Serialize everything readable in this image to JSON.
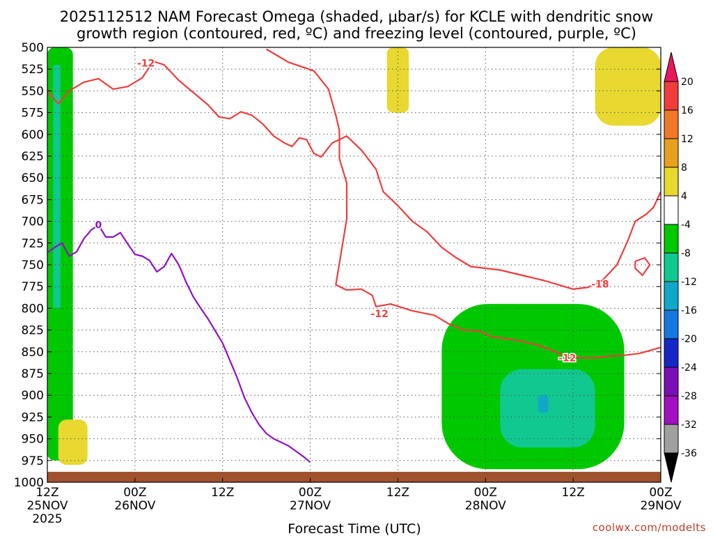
{
  "chart_data": {
    "type": "contour",
    "title_line1": "2025112512 NAM Forecast Omega (shaded, μbar/s) for KCLE with dendritic snow",
    "title_line2": "growth region (contoured, red, ºC) and freezing level (contoured, purple, ºC)",
    "xlabel": "Forecast Time (UTC)",
    "credit": "coolwx.com/modelts",
    "y_axis": {
      "reversed": true,
      "ylim": [
        1000,
        500
      ],
      "ticks": [
        500,
        525,
        550,
        575,
        600,
        625,
        650,
        675,
        700,
        725,
        750,
        775,
        800,
        825,
        850,
        875,
        900,
        925,
        950,
        975,
        1000
      ]
    },
    "x_axis": {
      "xlim": [
        0,
        84
      ],
      "ticks": [
        {
          "hour": 0,
          "time": "12Z",
          "date": "25NOV",
          "year": "2025"
        },
        {
          "hour": 12,
          "time": "00Z",
          "date": "26NOV",
          "year": ""
        },
        {
          "hour": 24,
          "time": "12Z",
          "date": "",
          "year": ""
        },
        {
          "hour": 36,
          "time": "00Z",
          "date": "27NOV",
          "year": ""
        },
        {
          "hour": 48,
          "time": "12Z",
          "date": "",
          "year": ""
        },
        {
          "hour": 60,
          "time": "00Z",
          "date": "28NOV",
          "year": ""
        },
        {
          "hour": 72,
          "time": "12Z",
          "date": "",
          "year": ""
        },
        {
          "hour": 84,
          "time": "00Z",
          "date": "29NOV",
          "year": ""
        }
      ]
    },
    "colorbar": {
      "levels": [
        20,
        16,
        12,
        8,
        4,
        -4,
        -8,
        -12,
        -16,
        -20,
        -24,
        -28,
        -32,
        -36
      ],
      "colors": [
        "#e8185c",
        "#f03c3c",
        "#f07828",
        "#e8a020",
        "#e8d830",
        "#ffffff",
        "#00c800",
        "#10c890",
        "#10a8c8",
        "#1478e0",
        "#1428c8",
        "#7810b4",
        "#a010c0",
        "#a0a0a0",
        "#000000"
      ]
    },
    "contour_labels": [
      {
        "value": "-12",
        "color": "#f03c3c",
        "hour": 13.5,
        "p": 518
      },
      {
        "value": "-12",
        "color": "#f03c3c",
        "hour": 45.5,
        "p": 806
      },
      {
        "value": "-12",
        "color": "#f03c3c",
        "hour": 71.2,
        "p": 857
      },
      {
        "value": "-18",
        "color": "#f03c3c",
        "hour": 75.7,
        "p": 772
      },
      {
        "value": "0",
        "color": "#9010c8",
        "hour": 7.0,
        "p": 704
      }
    ],
    "contours": {
      "dgz_minus12_upper": [
        [
          0,
          550
        ],
        [
          1.5,
          565
        ],
        [
          3,
          550
        ],
        [
          5,
          540
        ],
        [
          7,
          536
        ],
        [
          9,
          548
        ],
        [
          11,
          545
        ],
        [
          13,
          535
        ],
        [
          14.5,
          516
        ],
        [
          16,
          520
        ],
        [
          18,
          538
        ],
        [
          20,
          552
        ],
        [
          22,
          566
        ],
        [
          23.5,
          580
        ],
        [
          25,
          582
        ],
        [
          26.5,
          574
        ],
        [
          28,
          578
        ],
        [
          29.5,
          588
        ],
        [
          31,
          602
        ],
        [
          32.5,
          610
        ],
        [
          33.5,
          614
        ],
        [
          34.5,
          604
        ],
        [
          35.5,
          606
        ],
        [
          36.5,
          622
        ],
        [
          37.5,
          626
        ],
        [
          39,
          610
        ],
        [
          41,
          602
        ],
        [
          43,
          618
        ],
        [
          45,
          640
        ],
        [
          46,
          666
        ],
        [
          48,
          682
        ],
        [
          50,
          700
        ],
        [
          52,
          712
        ],
        [
          54,
          730
        ],
        [
          56,
          742
        ],
        [
          58,
          752
        ],
        [
          60,
          754
        ],
        [
          62,
          756
        ],
        [
          64,
          760
        ],
        [
          66,
          764
        ],
        [
          68,
          768
        ],
        [
          70,
          773
        ],
        [
          72,
          778
        ],
        [
          74,
          776
        ],
        [
          76,
          768
        ],
        [
          78,
          750
        ],
        [
          79.5,
          722
        ],
        [
          80.5,
          700
        ],
        [
          82,
          692
        ],
        [
          83,
          684
        ],
        [
          84,
          666
        ]
      ],
      "dgz_minus18_upper": [
        [
          30,
          502
        ],
        [
          33,
          517
        ],
        [
          36.5,
          527
        ],
        [
          38.5,
          548
        ],
        [
          39.5,
          578
        ],
        [
          40,
          596
        ],
        [
          40,
          628
        ],
        [
          41,
          656
        ],
        [
          41,
          697
        ],
        [
          40,
          748
        ],
        [
          39.5,
          773
        ],
        [
          41,
          779
        ],
        [
          43,
          778
        ],
        [
          44.5,
          785
        ],
        [
          45,
          798
        ],
        [
          47,
          795
        ],
        [
          50,
          803
        ],
        [
          53,
          808
        ],
        [
          55,
          818
        ],
        [
          57,
          825
        ],
        [
          59,
          826
        ],
        [
          61,
          833
        ],
        [
          63,
          835
        ],
        [
          65,
          838
        ],
        [
          67,
          842
        ],
        [
          69,
          848
        ],
        [
          71,
          855
        ],
        [
          73,
          857
        ],
        [
          75,
          857
        ],
        [
          77,
          855
        ],
        [
          79,
          854
        ],
        [
          81,
          852
        ],
        [
          84,
          845
        ]
      ],
      "dgz_minus18_closed": [
        [
          80.5,
          746
        ],
        [
          81.8,
          742
        ],
        [
          82.5,
          750
        ],
        [
          81.5,
          762
        ],
        [
          80.5,
          754
        ],
        [
          80.5,
          746
        ]
      ],
      "freezing_level": [
        [
          0,
          736
        ],
        [
          1,
          730
        ],
        [
          2,
          725
        ],
        [
          3,
          740
        ],
        [
          4,
          735
        ],
        [
          5,
          720
        ],
        [
          6,
          710
        ],
        [
          7,
          704
        ],
        [
          8,
          718
        ],
        [
          9,
          718
        ],
        [
          10,
          713
        ],
        [
          11,
          726
        ],
        [
          12,
          738
        ],
        [
          13,
          740
        ],
        [
          14,
          745
        ],
        [
          15,
          758
        ],
        [
          16,
          752
        ],
        [
          17,
          737
        ],
        [
          18,
          750
        ],
        [
          19,
          770
        ],
        [
          20,
          787
        ],
        [
          21,
          800
        ],
        [
          22,
          812
        ],
        [
          23,
          826
        ],
        [
          24,
          840
        ],
        [
          25,
          860
        ],
        [
          26,
          880
        ],
        [
          27,
          903
        ],
        [
          28,
          920
        ],
        [
          29,
          934
        ],
        [
          30,
          944
        ],
        [
          31,
          950
        ],
        [
          33,
          958
        ],
        [
          35,
          970
        ],
        [
          36,
          977
        ]
      ]
    },
    "shading": [
      {
        "cat": "-4 to -8",
        "color": "#00c800",
        "hour_range": [
          0,
          3.5
        ],
        "p_range": [
          500,
          975
        ]
      },
      {
        "cat": "-8 to -12",
        "color": "#10c890",
        "hour_range": [
          0.8,
          1.8
        ],
        "p_range": [
          520,
          800
        ]
      },
      {
        "cat": "4 to 8",
        "color": "#e8d830",
        "hour_range": [
          1.5,
          5.5
        ],
        "p_range": [
          928,
          980
        ]
      },
      {
        "cat": "4 to 8",
        "color": "#e8d830",
        "hour_range": [
          46.5,
          49.5
        ],
        "p_range": [
          500,
          575
        ]
      },
      {
        "cat": "4 to 8",
        "color": "#e8d830",
        "hour_range": [
          75,
          84
        ],
        "p_range": [
          500,
          590
        ]
      },
      {
        "cat": "-4 to -8",
        "color": "#00c800",
        "hour_range": [
          54,
          79
        ],
        "p_range": [
          795,
          985
        ]
      },
      {
        "cat": "-8 to -12",
        "color": "#10c890",
        "hour_range": [
          62,
          75
        ],
        "p_range": [
          870,
          960
        ]
      },
      {
        "cat": "-12 to -16",
        "color": "#10a8c8",
        "hour_range": [
          67.2,
          68.6
        ],
        "p_range": [
          900,
          920
        ]
      }
    ],
    "ground": {
      "color": "#a0522d",
      "p_top": 988
    }
  }
}
